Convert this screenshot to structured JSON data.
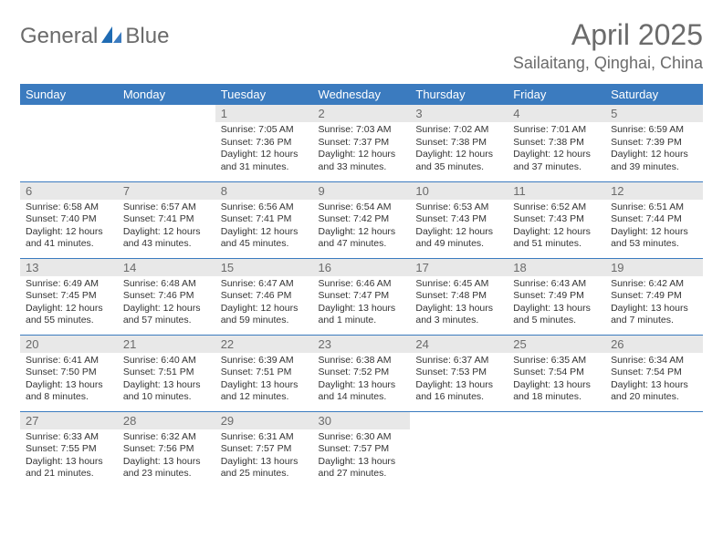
{
  "logo": {
    "general": "General",
    "blue": "Blue"
  },
  "header": {
    "title": "April 2025",
    "location": "Sailaitang, Qinghai, China"
  },
  "colors": {
    "header_bg": "#3b7bbf",
    "header_fg": "#ffffff",
    "daynum_bg": "#e8e8e8",
    "text": "#333333",
    "muted": "#6b6b6b",
    "rule": "#3b7bbf"
  },
  "weekdays": [
    "Sunday",
    "Monday",
    "Tuesday",
    "Wednesday",
    "Thursday",
    "Friday",
    "Saturday"
  ],
  "weeks": [
    [
      null,
      null,
      {
        "n": "1",
        "sr": "Sunrise: 7:05 AM",
        "ss": "Sunset: 7:36 PM",
        "d1": "Daylight: 12 hours",
        "d2": "and 31 minutes."
      },
      {
        "n": "2",
        "sr": "Sunrise: 7:03 AM",
        "ss": "Sunset: 7:37 PM",
        "d1": "Daylight: 12 hours",
        "d2": "and 33 minutes."
      },
      {
        "n": "3",
        "sr": "Sunrise: 7:02 AM",
        "ss": "Sunset: 7:38 PM",
        "d1": "Daylight: 12 hours",
        "d2": "and 35 minutes."
      },
      {
        "n": "4",
        "sr": "Sunrise: 7:01 AM",
        "ss": "Sunset: 7:38 PM",
        "d1": "Daylight: 12 hours",
        "d2": "and 37 minutes."
      },
      {
        "n": "5",
        "sr": "Sunrise: 6:59 AM",
        "ss": "Sunset: 7:39 PM",
        "d1": "Daylight: 12 hours",
        "d2": "and 39 minutes."
      }
    ],
    [
      {
        "n": "6",
        "sr": "Sunrise: 6:58 AM",
        "ss": "Sunset: 7:40 PM",
        "d1": "Daylight: 12 hours",
        "d2": "and 41 minutes."
      },
      {
        "n": "7",
        "sr": "Sunrise: 6:57 AM",
        "ss": "Sunset: 7:41 PM",
        "d1": "Daylight: 12 hours",
        "d2": "and 43 minutes."
      },
      {
        "n": "8",
        "sr": "Sunrise: 6:56 AM",
        "ss": "Sunset: 7:41 PM",
        "d1": "Daylight: 12 hours",
        "d2": "and 45 minutes."
      },
      {
        "n": "9",
        "sr": "Sunrise: 6:54 AM",
        "ss": "Sunset: 7:42 PM",
        "d1": "Daylight: 12 hours",
        "d2": "and 47 minutes."
      },
      {
        "n": "10",
        "sr": "Sunrise: 6:53 AM",
        "ss": "Sunset: 7:43 PM",
        "d1": "Daylight: 12 hours",
        "d2": "and 49 minutes."
      },
      {
        "n": "11",
        "sr": "Sunrise: 6:52 AM",
        "ss": "Sunset: 7:43 PM",
        "d1": "Daylight: 12 hours",
        "d2": "and 51 minutes."
      },
      {
        "n": "12",
        "sr": "Sunrise: 6:51 AM",
        "ss": "Sunset: 7:44 PM",
        "d1": "Daylight: 12 hours",
        "d2": "and 53 minutes."
      }
    ],
    [
      {
        "n": "13",
        "sr": "Sunrise: 6:49 AM",
        "ss": "Sunset: 7:45 PM",
        "d1": "Daylight: 12 hours",
        "d2": "and 55 minutes."
      },
      {
        "n": "14",
        "sr": "Sunrise: 6:48 AM",
        "ss": "Sunset: 7:46 PM",
        "d1": "Daylight: 12 hours",
        "d2": "and 57 minutes."
      },
      {
        "n": "15",
        "sr": "Sunrise: 6:47 AM",
        "ss": "Sunset: 7:46 PM",
        "d1": "Daylight: 12 hours",
        "d2": "and 59 minutes."
      },
      {
        "n": "16",
        "sr": "Sunrise: 6:46 AM",
        "ss": "Sunset: 7:47 PM",
        "d1": "Daylight: 13 hours",
        "d2": "and 1 minute."
      },
      {
        "n": "17",
        "sr": "Sunrise: 6:45 AM",
        "ss": "Sunset: 7:48 PM",
        "d1": "Daylight: 13 hours",
        "d2": "and 3 minutes."
      },
      {
        "n": "18",
        "sr": "Sunrise: 6:43 AM",
        "ss": "Sunset: 7:49 PM",
        "d1": "Daylight: 13 hours",
        "d2": "and 5 minutes."
      },
      {
        "n": "19",
        "sr": "Sunrise: 6:42 AM",
        "ss": "Sunset: 7:49 PM",
        "d1": "Daylight: 13 hours",
        "d2": "and 7 minutes."
      }
    ],
    [
      {
        "n": "20",
        "sr": "Sunrise: 6:41 AM",
        "ss": "Sunset: 7:50 PM",
        "d1": "Daylight: 13 hours",
        "d2": "and 8 minutes."
      },
      {
        "n": "21",
        "sr": "Sunrise: 6:40 AM",
        "ss": "Sunset: 7:51 PM",
        "d1": "Daylight: 13 hours",
        "d2": "and 10 minutes."
      },
      {
        "n": "22",
        "sr": "Sunrise: 6:39 AM",
        "ss": "Sunset: 7:51 PM",
        "d1": "Daylight: 13 hours",
        "d2": "and 12 minutes."
      },
      {
        "n": "23",
        "sr": "Sunrise: 6:38 AM",
        "ss": "Sunset: 7:52 PM",
        "d1": "Daylight: 13 hours",
        "d2": "and 14 minutes."
      },
      {
        "n": "24",
        "sr": "Sunrise: 6:37 AM",
        "ss": "Sunset: 7:53 PM",
        "d1": "Daylight: 13 hours",
        "d2": "and 16 minutes."
      },
      {
        "n": "25",
        "sr": "Sunrise: 6:35 AM",
        "ss": "Sunset: 7:54 PM",
        "d1": "Daylight: 13 hours",
        "d2": "and 18 minutes."
      },
      {
        "n": "26",
        "sr": "Sunrise: 6:34 AM",
        "ss": "Sunset: 7:54 PM",
        "d1": "Daylight: 13 hours",
        "d2": "and 20 minutes."
      }
    ],
    [
      {
        "n": "27",
        "sr": "Sunrise: 6:33 AM",
        "ss": "Sunset: 7:55 PM",
        "d1": "Daylight: 13 hours",
        "d2": "and 21 minutes."
      },
      {
        "n": "28",
        "sr": "Sunrise: 6:32 AM",
        "ss": "Sunset: 7:56 PM",
        "d1": "Daylight: 13 hours",
        "d2": "and 23 minutes."
      },
      {
        "n": "29",
        "sr": "Sunrise: 6:31 AM",
        "ss": "Sunset: 7:57 PM",
        "d1": "Daylight: 13 hours",
        "d2": "and 25 minutes."
      },
      {
        "n": "30",
        "sr": "Sunrise: 6:30 AM",
        "ss": "Sunset: 7:57 PM",
        "d1": "Daylight: 13 hours",
        "d2": "and 27 minutes."
      },
      null,
      null,
      null
    ]
  ]
}
